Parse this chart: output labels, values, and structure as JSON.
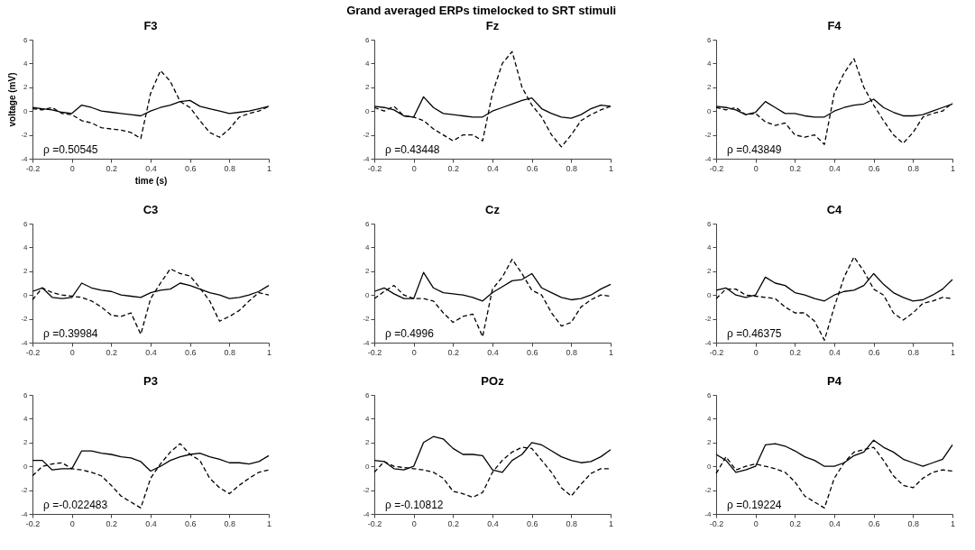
{
  "chart_data": [
    {
      "type": "line",
      "title": "F3",
      "xlabel": "time (s)",
      "ylabel": "voltage (mV)",
      "annotations": [
        "Grand averaged ERPs timelocked to SRT stimuli",
        "ρ =0.50545"
      ],
      "xlim": [
        -0.2,
        1
      ],
      "xticks": [
        -0.2,
        0,
        0.2,
        0.4,
        0.6,
        0.8,
        1
      ],
      "ylim": [
        -4,
        6
      ],
      "yticks": [
        -4,
        -2,
        0,
        2,
        4,
        6
      ],
      "grid": false,
      "x": [
        -0.2,
        -0.15,
        -0.1,
        -0.05,
        0,
        0.05,
        0.1,
        0.15,
        0.2,
        0.25,
        0.3,
        0.35,
        0.4,
        0.45,
        0.5,
        0.55,
        0.6,
        0.65,
        0.7,
        0.75,
        0.8,
        0.85,
        0.9,
        0.95,
        1
      ],
      "series": [
        {
          "color": "#000000",
          "line_style": "dashed",
          "values": [
            0.2,
            0.1,
            0.3,
            -0.2,
            -0.3,
            -0.8,
            -1.0,
            -1.4,
            -1.5,
            -1.6,
            -1.8,
            -2.3,
            1.5,
            3.4,
            2.5,
            0.8,
            0.3,
            -0.8,
            -1.8,
            -2.2,
            -1.5,
            -0.5,
            -0.2,
            0.0,
            0.4
          ]
        },
        {
          "color": "#000000",
          "line_style": "solid",
          "values": [
            0.3,
            0.2,
            0.1,
            -0.1,
            -0.2,
            0.5,
            0.3,
            0.0,
            -0.1,
            -0.2,
            -0.3,
            -0.4,
            0.0,
            0.3,
            0.5,
            0.8,
            0.9,
            0.4,
            0.2,
            0.0,
            -0.2,
            -0.1,
            0.0,
            0.2,
            0.4
          ]
        }
      ]
    },
    {
      "type": "line",
      "title": "Fz",
      "annotations": [
        "ρ =0.43448"
      ],
      "xlim": [
        -0.2,
        1
      ],
      "xticks": [
        -0.2,
        0,
        0.2,
        0.4,
        0.6,
        0.8,
        1
      ],
      "ylim": [
        -4,
        6
      ],
      "yticks": [
        -4,
        -2,
        0,
        2,
        4,
        6
      ],
      "grid": false,
      "x": [
        -0.2,
        -0.15,
        -0.1,
        -0.05,
        0,
        0.05,
        0.1,
        0.15,
        0.2,
        0.25,
        0.3,
        0.35,
        0.4,
        0.45,
        0.5,
        0.55,
        0.6,
        0.65,
        0.7,
        0.75,
        0.8,
        0.85,
        0.9,
        0.95,
        1
      ],
      "series": [
        {
          "color": "#000000",
          "line_style": "dashed",
          "values": [
            0.3,
            0.0,
            0.4,
            -0.4,
            -0.5,
            -0.8,
            -1.5,
            -2.0,
            -2.5,
            -2.0,
            -2.0,
            -2.5,
            1.5,
            4.0,
            5.0,
            2.0,
            0.5,
            -0.5,
            -2.0,
            -3.0,
            -2.0,
            -0.8,
            -0.3,
            0.1,
            0.4
          ]
        },
        {
          "color": "#000000",
          "line_style": "solid",
          "values": [
            0.4,
            0.3,
            0.1,
            -0.4,
            -0.5,
            1.2,
            0.3,
            -0.2,
            -0.3,
            -0.4,
            -0.5,
            -0.5,
            0.0,
            0.3,
            0.6,
            0.9,
            1.1,
            0.2,
            -0.2,
            -0.5,
            -0.6,
            -0.3,
            0.2,
            0.5,
            0.4
          ]
        }
      ]
    },
    {
      "type": "line",
      "title": "F4",
      "annotations": [
        "ρ =0.43849"
      ],
      "xlim": [
        -0.2,
        1
      ],
      "xticks": [
        -0.2,
        0,
        0.2,
        0.4,
        0.6,
        0.8,
        1
      ],
      "ylim": [
        -4,
        6
      ],
      "yticks": [
        -4,
        -2,
        0,
        2,
        4,
        6
      ],
      "grid": false,
      "x": [
        -0.2,
        -0.15,
        -0.1,
        -0.05,
        0,
        0.05,
        0.1,
        0.15,
        0.2,
        0.25,
        0.3,
        0.35,
        0.4,
        0.45,
        0.5,
        0.55,
        0.6,
        0.65,
        0.7,
        0.75,
        0.8,
        0.85,
        0.9,
        0.95,
        1
      ],
      "series": [
        {
          "color": "#000000",
          "line_style": "dashed",
          "values": [
            0.3,
            0.1,
            0.3,
            -0.3,
            -0.2,
            -0.9,
            -1.2,
            -1.0,
            -2.0,
            -2.2,
            -2.0,
            -2.8,
            1.5,
            3.2,
            4.4,
            2.0,
            0.5,
            -0.8,
            -2.0,
            -2.7,
            -1.8,
            -0.5,
            -0.2,
            0.0,
            0.7
          ]
        },
        {
          "color": "#000000",
          "line_style": "solid",
          "values": [
            0.4,
            0.3,
            0.1,
            -0.3,
            -0.1,
            0.8,
            0.3,
            -0.2,
            -0.2,
            -0.4,
            -0.5,
            -0.5,
            0.0,
            0.3,
            0.5,
            0.6,
            1.0,
            0.3,
            -0.1,
            -0.4,
            -0.4,
            -0.3,
            0.0,
            0.3,
            0.6
          ]
        }
      ]
    },
    {
      "type": "line",
      "title": "C3",
      "annotations": [
        "ρ =0.39984"
      ],
      "xlim": [
        -0.2,
        1
      ],
      "xticks": [
        -0.2,
        0,
        0.2,
        0.4,
        0.6,
        0.8,
        1
      ],
      "ylim": [
        -4,
        6
      ],
      "yticks": [
        -4,
        -2,
        0,
        2,
        4,
        6
      ],
      "grid": false,
      "x": [
        -0.2,
        -0.15,
        -0.1,
        -0.05,
        0,
        0.05,
        0.1,
        0.15,
        0.2,
        0.25,
        0.3,
        0.35,
        0.4,
        0.45,
        0.5,
        0.55,
        0.6,
        0.65,
        0.7,
        0.75,
        0.8,
        0.85,
        0.9,
        0.95,
        1
      ],
      "series": [
        {
          "color": "#000000",
          "line_style": "dashed",
          "values": [
            -0.4,
            0.6,
            0.2,
            0.0,
            -0.1,
            -0.2,
            -0.5,
            -1.0,
            -1.7,
            -1.8,
            -1.5,
            -3.3,
            -0.3,
            1.0,
            2.2,
            1.8,
            1.6,
            0.6,
            -0.5,
            -2.2,
            -1.8,
            -1.3,
            -0.5,
            0.2,
            0.0
          ]
        },
        {
          "color": "#000000",
          "line_style": "solid",
          "values": [
            0.3,
            0.6,
            -0.2,
            -0.3,
            -0.2,
            1.0,
            0.6,
            0.4,
            0.3,
            0.0,
            -0.1,
            -0.2,
            0.2,
            0.4,
            0.5,
            1.0,
            0.8,
            0.5,
            0.2,
            0.0,
            -0.3,
            -0.2,
            0.0,
            0.3,
            0.8
          ]
        }
      ]
    },
    {
      "type": "line",
      "title": "Cz",
      "annotations": [
        "ρ =0.4996"
      ],
      "xlim": [
        -0.2,
        1
      ],
      "xticks": [
        -0.2,
        0,
        0.2,
        0.4,
        0.6,
        0.8,
        1
      ],
      "ylim": [
        -4,
        6
      ],
      "yticks": [
        -4,
        -2,
        0,
        2,
        4,
        6
      ],
      "grid": false,
      "x": [
        -0.2,
        -0.15,
        -0.1,
        -0.05,
        0,
        0.05,
        0.1,
        0.15,
        0.2,
        0.25,
        0.3,
        0.35,
        0.4,
        0.45,
        0.5,
        0.55,
        0.6,
        0.65,
        0.7,
        0.75,
        0.8,
        0.85,
        0.9,
        0.95,
        1
      ],
      "series": [
        {
          "color": "#000000",
          "line_style": "dashed",
          "values": [
            -0.3,
            0.3,
            0.8,
            0.0,
            -0.3,
            -0.3,
            -0.5,
            -1.5,
            -2.3,
            -1.8,
            -1.6,
            -3.5,
            0.5,
            1.5,
            3.0,
            1.8,
            0.4,
            0.0,
            -1.5,
            -2.6,
            -2.3,
            -1.0,
            -0.4,
            0.0,
            -0.1
          ]
        },
        {
          "color": "#000000",
          "line_style": "solid",
          "values": [
            0.3,
            0.6,
            0.1,
            -0.3,
            -0.3,
            1.9,
            0.6,
            0.2,
            0.1,
            0.0,
            -0.2,
            -0.5,
            0.2,
            0.7,
            1.2,
            1.3,
            1.8,
            0.6,
            0.2,
            -0.2,
            -0.4,
            -0.3,
            0.0,
            0.5,
            0.9
          ]
        }
      ]
    },
    {
      "type": "line",
      "title": "C4",
      "annotations": [
        "ρ =0.46375"
      ],
      "xlim": [
        -0.2,
        1
      ],
      "xticks": [
        -0.2,
        0,
        0.2,
        0.4,
        0.6,
        0.8,
        1
      ],
      "ylim": [
        -4,
        6
      ],
      "yticks": [
        -4,
        -2,
        0,
        2,
        4,
        6
      ],
      "grid": false,
      "x": [
        -0.2,
        -0.15,
        -0.1,
        -0.05,
        0,
        0.05,
        0.1,
        0.15,
        0.2,
        0.25,
        0.3,
        0.35,
        0.4,
        0.45,
        0.5,
        0.55,
        0.6,
        0.65,
        0.7,
        0.75,
        0.8,
        0.85,
        0.9,
        0.95,
        1
      ],
      "series": [
        {
          "color": "#000000",
          "line_style": "dashed",
          "values": [
            -0.3,
            0.5,
            0.5,
            0.0,
            -0.1,
            -0.2,
            -0.3,
            -1.0,
            -1.5,
            -1.5,
            -2.2,
            -3.8,
            -1.0,
            1.5,
            3.2,
            2.0,
            0.5,
            0.0,
            -1.5,
            -2.1,
            -1.5,
            -0.7,
            -0.5,
            -0.2,
            -0.3
          ]
        },
        {
          "color": "#000000",
          "line_style": "solid",
          "values": [
            0.4,
            0.6,
            0.0,
            -0.2,
            0.0,
            1.5,
            1.0,
            0.8,
            0.2,
            0.0,
            -0.3,
            -0.5,
            0.0,
            0.3,
            0.4,
            0.8,
            1.8,
            0.9,
            0.2,
            -0.2,
            -0.5,
            -0.4,
            0.0,
            0.5,
            1.3
          ]
        }
      ]
    },
    {
      "type": "line",
      "title": "P3",
      "annotations": [
        "ρ =-0.022483"
      ],
      "xlim": [
        -0.2,
        1
      ],
      "xticks": [
        -0.2,
        0,
        0.2,
        0.4,
        0.6,
        0.8,
        1
      ],
      "ylim": [
        -4,
        6
      ],
      "yticks": [
        -4,
        -2,
        0,
        2,
        4,
        6
      ],
      "grid": false,
      "x": [
        -0.2,
        -0.15,
        -0.1,
        -0.05,
        0,
        0.05,
        0.1,
        0.15,
        0.2,
        0.25,
        0.3,
        0.35,
        0.4,
        0.45,
        0.5,
        0.55,
        0.6,
        0.65,
        0.7,
        0.75,
        0.8,
        0.85,
        0.9,
        0.95,
        1
      ],
      "series": [
        {
          "color": "#000000",
          "line_style": "dashed",
          "values": [
            -0.8,
            0.0,
            0.2,
            0.3,
            -0.2,
            -0.3,
            -0.5,
            -0.8,
            -1.6,
            -2.5,
            -3.0,
            -3.5,
            -1.0,
            0.2,
            1.2,
            1.9,
            1.0,
            0.5,
            -1.0,
            -1.8,
            -2.3,
            -1.6,
            -1.0,
            -0.5,
            -0.3
          ]
        },
        {
          "color": "#000000",
          "line_style": "solid",
          "values": [
            0.5,
            0.5,
            -0.3,
            -0.2,
            -0.2,
            1.3,
            1.3,
            1.1,
            1.0,
            0.8,
            0.7,
            0.4,
            -0.4,
            0.0,
            0.5,
            0.8,
            1.0,
            1.1,
            0.8,
            0.6,
            0.3,
            0.3,
            0.2,
            0.4,
            0.9
          ]
        }
      ]
    },
    {
      "type": "line",
      "title": "POz",
      "annotations": [
        "ρ =-0.10812"
      ],
      "xlim": [
        -0.2,
        1
      ],
      "xticks": [
        -0.2,
        0,
        0.2,
        0.4,
        0.6,
        0.8,
        1
      ],
      "ylim": [
        -4,
        6
      ],
      "yticks": [
        -4,
        -2,
        0,
        2,
        4,
        6
      ],
      "grid": false,
      "x": [
        -0.2,
        -0.15,
        -0.1,
        -0.05,
        0,
        0.05,
        0.1,
        0.15,
        0.2,
        0.25,
        0.3,
        0.35,
        0.4,
        0.45,
        0.5,
        0.55,
        0.6,
        0.65,
        0.7,
        0.75,
        0.8,
        0.85,
        0.9,
        0.95,
        1
      ],
      "series": [
        {
          "color": "#000000",
          "line_style": "dashed",
          "values": [
            -0.5,
            0.4,
            0.0,
            -0.1,
            -0.2,
            -0.3,
            -0.5,
            -1.0,
            -2.1,
            -2.3,
            -2.6,
            -2.2,
            -0.5,
            0.5,
            1.2,
            1.6,
            1.5,
            0.5,
            -0.5,
            -1.8,
            -2.5,
            -1.5,
            -0.6,
            -0.2,
            -0.2
          ]
        },
        {
          "color": "#000000",
          "line_style": "solid",
          "values": [
            0.5,
            0.4,
            -0.2,
            -0.3,
            0.0,
            2.0,
            2.5,
            2.3,
            1.5,
            1.0,
            1.0,
            0.9,
            -0.3,
            -0.5,
            0.5,
            1.0,
            2.0,
            1.8,
            1.3,
            0.8,
            0.5,
            0.3,
            0.4,
            0.8,
            1.4
          ]
        }
      ]
    },
    {
      "type": "line",
      "title": "P4",
      "annotations": [
        "ρ =0.19224"
      ],
      "xlim": [
        -0.2,
        1
      ],
      "xticks": [
        -0.2,
        0,
        0.2,
        0.4,
        0.6,
        0.8,
        1
      ],
      "ylim": [
        -4,
        6
      ],
      "yticks": [
        -4,
        -2,
        0,
        2,
        4,
        6
      ],
      "grid": false,
      "x": [
        -0.2,
        -0.15,
        -0.1,
        -0.05,
        0,
        0.05,
        0.1,
        0.15,
        0.2,
        0.25,
        0.3,
        0.35,
        0.4,
        0.45,
        0.5,
        0.55,
        0.6,
        0.65,
        0.7,
        0.75,
        0.8,
        0.85,
        0.9,
        0.95,
        1
      ],
      "series": [
        {
          "color": "#000000",
          "line_style": "dashed",
          "values": [
            -0.6,
            0.8,
            -0.3,
            0.0,
            0.2,
            0.0,
            -0.2,
            -0.5,
            -1.3,
            -2.5,
            -3.0,
            -3.5,
            -1.0,
            0.3,
            1.2,
            1.4,
            1.6,
            0.5,
            -0.8,
            -1.6,
            -1.8,
            -1.0,
            -0.5,
            -0.3,
            -0.4
          ]
        },
        {
          "color": "#000000",
          "line_style": "solid",
          "values": [
            1.0,
            0.5,
            -0.5,
            -0.3,
            0.0,
            1.8,
            1.9,
            1.7,
            1.3,
            0.8,
            0.5,
            0.0,
            0.0,
            0.3,
            0.9,
            1.2,
            2.2,
            1.6,
            1.2,
            0.6,
            0.3,
            0.0,
            0.3,
            0.6,
            1.8
          ]
        }
      ]
    }
  ]
}
